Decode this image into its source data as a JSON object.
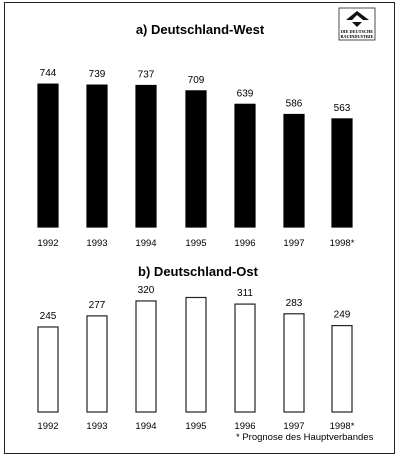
{
  "logo": {
    "line1": "DIE DEUTSCHE",
    "line2": "BAUINDUSTRIE"
  },
  "footnote": "* Prognose des Hauptverbandes",
  "chart_data": [
    {
      "type": "bar",
      "title": "a) Deutschland-West",
      "categories": [
        "1992",
        "1993",
        "1994",
        "1995",
        "1996",
        "1997",
        "1998*"
      ],
      "values": [
        744,
        739,
        737,
        709,
        639,
        586,
        563
      ],
      "value_labels": [
        "744",
        "739",
        "737",
        "709",
        "639",
        "586",
        "563"
      ],
      "bar_color": "#000000"
    },
    {
      "type": "bar",
      "title": "b) Deutschland-Ost",
      "categories": [
        "1992",
        "1993",
        "1994",
        "1995",
        "1996",
        "1997",
        "1998*"
      ],
      "values": [
        245,
        277,
        320,
        330,
        311,
        283,
        249
      ],
      "value_labels": [
        "245",
        "277",
        "320",
        "",
        "311",
        "283",
        "249"
      ],
      "bar_color": "#ffffff"
    }
  ]
}
